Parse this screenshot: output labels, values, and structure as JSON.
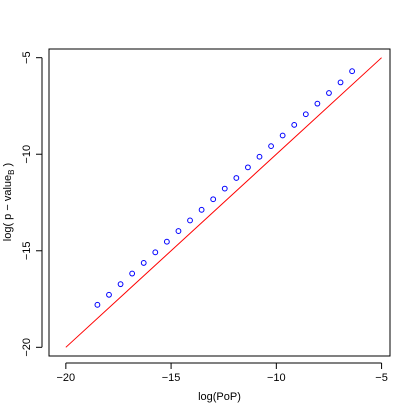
{
  "chart_data": {
    "type": "scatter",
    "title": "",
    "xlabel": "log(PoP)",
    "ylabel": "log( p − value",
    "ylabel_subscript": "B",
    "ylabel_close": " )",
    "xlim": [
      -20.8,
      -4.6
    ],
    "ylim": [
      -20.45,
      -4.55
    ],
    "xticks": [
      -20,
      -15,
      -10,
      -5
    ],
    "xtick_labels": [
      "−20",
      "−15",
      "−10",
      "−5"
    ],
    "yticks": [
      -20,
      -15,
      -10,
      -5
    ],
    "ytick_labels": [
      "−20",
      "−15",
      "−10",
      "−5"
    ],
    "grid": false,
    "legend": "none",
    "points": {
      "x": [
        -18.5,
        -17.95,
        -17.4,
        -16.85,
        -16.3,
        -15.75,
        -15.2,
        -14.65,
        -14.1,
        -13.55,
        -13.0,
        -12.45,
        -11.9,
        -11.35,
        -10.8,
        -10.25,
        -9.7,
        -9.15,
        -8.6,
        -8.05,
        -7.5,
        -6.95,
        -6.4
      ],
      "y": [
        -17.8,
        -17.28,
        -16.73,
        -16.18,
        -15.63,
        -15.08,
        -14.53,
        -13.98,
        -13.43,
        -12.88,
        -12.33,
        -11.78,
        -11.23,
        -10.68,
        -10.13,
        -9.58,
        -9.03,
        -8.48,
        -7.93,
        -7.38,
        -6.83,
        -6.28,
        -5.7
      ],
      "color": "#0000ff"
    },
    "reference_line": {
      "x": [
        -20,
        -5
      ],
      "y": [
        -20,
        -5
      ],
      "color": "#ff0000"
    }
  }
}
